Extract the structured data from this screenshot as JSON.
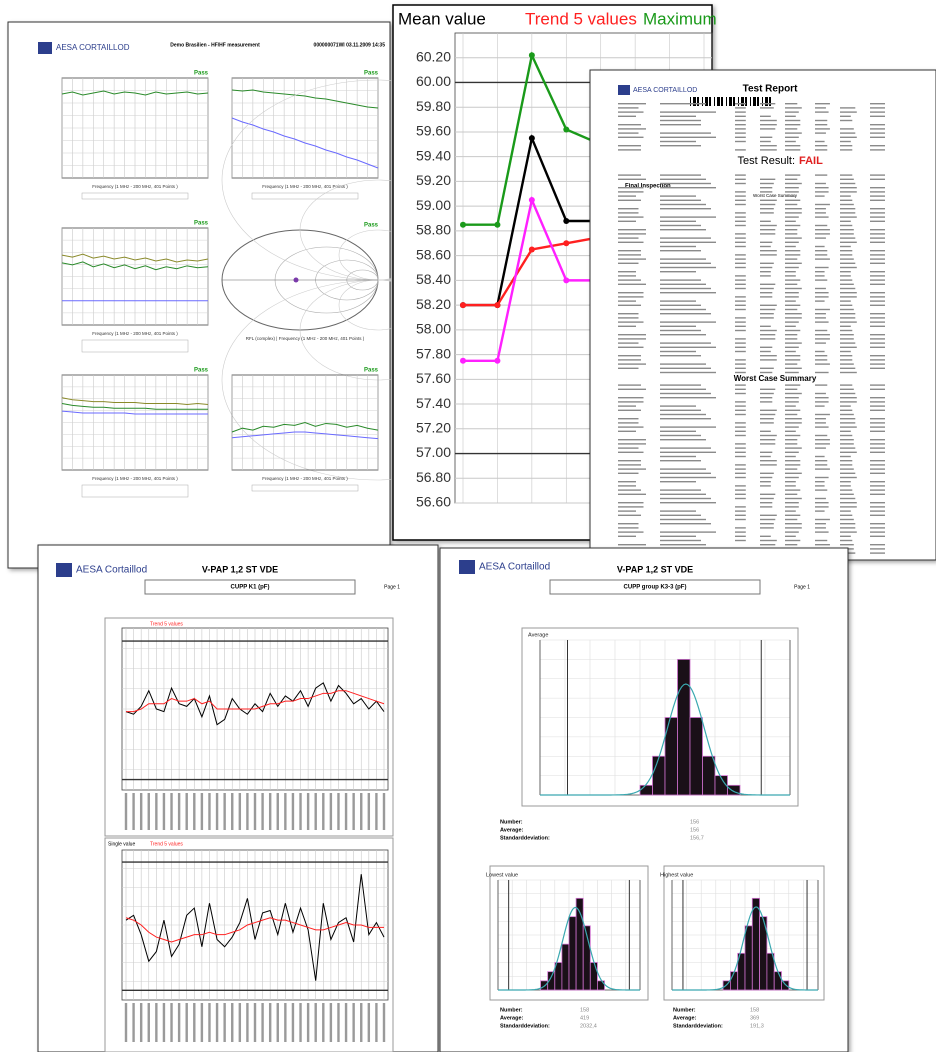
{
  "hf_report": {
    "logo": "AESA CORTAILLOD",
    "title": "Demo Brasilien - HF/HF measurement",
    "id": "000000071WI 03.11.2009 14:35"
  },
  "test_report": {
    "logo": "AESA CORTAILLOD",
    "title": "Test Report",
    "result_label": "Test Result:",
    "result": "FAIL",
    "section": "Final Inspection",
    "summary_small": "Worst Case Summary",
    "summary": "Worst Case Summary"
  },
  "trend_report": {
    "logo": "AESA Cortaillod",
    "title": "V-PAP 1,2 ST   VDE",
    "subtitle": "CUPP K1 (pF)",
    "page": "Page 1"
  },
  "histogram_report": {
    "logo": "AESA Cortaillod",
    "title": "V-PAP 1,2 ST   VDE",
    "subtitle": "CUPP group K3-3 (pF)",
    "page": "Page 1",
    "stats": [
      {
        "labels": [
          "Number:",
          "Average:",
          "Standarddeviation:"
        ],
        "values": [
          "156",
          "156",
          "156,7"
        ]
      },
      {
        "labels": [
          "Number:",
          "Average:",
          "Standarddeviation:"
        ],
        "values": [
          "158",
          "419",
          "2032,4"
        ]
      },
      {
        "labels": [
          "Number:",
          "Average:",
          "Standarddeviation:"
        ],
        "values": [
          "158",
          "369",
          "191,3"
        ]
      }
    ]
  },
  "chart_data": [
    {
      "type": "line",
      "categories": [
        null,
        null,
        null,
        null,
        null,
        null,
        null,
        null
      ],
      "series": [
        {
          "name": "Mean value",
          "color": "#000000",
          "values": [
            58.2,
            58.2,
            59.55,
            58.88,
            58.88,
            58.68,
            58.68,
            58.38
          ]
        },
        {
          "name": "Trend 5 values",
          "color": "#ff2020",
          "values": [
            58.2,
            58.2,
            58.65,
            58.7,
            58.75,
            58.85,
            58.92,
            58.7
          ]
        },
        {
          "name": "Maximum",
          "color": "#1a9a1a",
          "values": [
            58.85,
            58.85,
            60.22,
            59.62,
            59.5,
            59.27,
            59.38,
            59.1
          ]
        },
        {
          "color": "#ff20ff",
          "values": [
            57.75,
            57.75,
            59.05,
            58.4,
            58.4,
            58.17,
            58.17,
            57.8
          ]
        }
      ],
      "ylim": [
        56.6,
        60.4
      ],
      "yticks": [
        {
          "value": 56.6,
          "label": "56.60"
        },
        {
          "value": 56.8,
          "label": "56.80"
        },
        {
          "value": 57,
          "label": "57.00"
        },
        {
          "value": 57.2,
          "label": "57.20"
        },
        {
          "value": 57.4,
          "label": "57.40"
        },
        {
          "value": 57.6,
          "label": "57.60"
        },
        {
          "value": 57.8,
          "label": "57.80"
        },
        {
          "value": 58,
          "label": "58.00"
        },
        {
          "value": 58.2,
          "label": "58.20"
        },
        {
          "value": 58.4,
          "label": "58.40"
        },
        {
          "value": 58.6,
          "label": "58.60"
        },
        {
          "value": 58.8,
          "label": "58.80"
        },
        {
          "value": 59,
          "label": "59.00"
        },
        {
          "value": 59.2,
          "label": "59.20"
        },
        {
          "value": 59.4,
          "label": "59.40"
        },
        {
          "value": 59.6,
          "label": "59.60"
        },
        {
          "value": 59.8,
          "label": "59.80"
        },
        {
          "value": 60,
          "label": "60.00"
        },
        {
          "value": 60.2,
          "label": "60.20"
        }
      ],
      "limits": [
        60,
        57
      ],
      "grid": true
    },
    {
      "type": "line",
      "annotation": "Pass",
      "xlabel": "Frequency (1 MHz - 200 MHz, 401 Points )",
      "ylim": [
        0,
        100
      ],
      "series": [
        {
          "color": "#2a8a2a",
          "values": [
            84,
            86,
            83,
            85,
            87,
            84,
            86,
            85,
            83,
            86,
            84,
            85,
            86,
            84,
            85
          ]
        }
      ]
    },
    {
      "type": "line",
      "annotation": "Pass",
      "xlabel": "Frequency (1 MHz - 200 MHz, 401 Points )",
      "ylim": [
        0,
        100
      ],
      "series": [
        {
          "color": "#2a8a2a",
          "values": [
            88,
            87,
            88,
            86,
            85,
            84,
            83,
            82,
            80,
            79,
            77,
            75,
            73,
            71,
            70
          ]
        },
        {
          "color": "#6a6aff",
          "values": [
            60,
            56,
            53,
            49,
            46,
            42,
            39,
            35,
            32,
            28,
            25,
            21,
            18,
            14,
            10
          ]
        }
      ]
    },
    {
      "type": "line",
      "annotation": "Pass",
      "xlabel": "Frequency (1 MHz - 200 MHz, 401 Points )",
      "ylim": [
        0,
        100
      ],
      "series": [
        {
          "color": "#8a8a2a",
          "values": [
            72,
            70,
            73,
            69,
            71,
            68,
            70,
            67,
            69,
            66,
            68,
            65,
            67,
            66,
            68
          ]
        },
        {
          "color": "#2a8a2a",
          "values": [
            64,
            62,
            65,
            60,
            63,
            59,
            62,
            58,
            61,
            57,
            60,
            58,
            61,
            59,
            60
          ]
        },
        {
          "color": "#6a6aff",
          "values": [
            25,
            25,
            25,
            25,
            25,
            25,
            25,
            25,
            25,
            25,
            25,
            25,
            25,
            25,
            25
          ]
        }
      ]
    },
    {
      "type": "smith",
      "annotation": "Pass"
    },
    {
      "type": "line",
      "annotation": "Pass",
      "xlabel": "Frequency (1 MHz - 200 MHz, 401 Points )",
      "ylim": [
        0,
        100
      ],
      "series": [
        {
          "color": "#8a8a2a",
          "values": [
            76,
            74,
            73,
            72,
            72,
            71,
            71,
            71,
            70,
            70,
            70,
            70,
            69,
            70,
            69
          ]
        },
        {
          "color": "#2a8a2a",
          "values": [
            70,
            68,
            67,
            66,
            66,
            65,
            65,
            65,
            65,
            64,
            64,
            64,
            64,
            64,
            64
          ]
        },
        {
          "color": "#6a6aff",
          "values": [
            62,
            61,
            60,
            60,
            60,
            60,
            60,
            59,
            59,
            59,
            59,
            59,
            59,
            59,
            59
          ]
        }
      ]
    },
    {
      "type": "line",
      "annotation": "Pass",
      "title": "RFL (complex) | Frequency (1 MHz - 200 MHz, 401 Points )",
      "xlabel": "Frequency (1 MHz - 200 MHz, 401 Points )",
      "ylim": [
        0,
        100
      ],
      "series": [
        {
          "color": "#2a8a2a",
          "values": [
            40,
            44,
            42,
            46,
            45,
            48,
            47,
            50,
            46,
            49,
            48,
            45,
            47,
            44,
            42
          ]
        },
        {
          "color": "#6a6aff",
          "values": [
            34,
            35,
            36,
            37,
            38,
            39,
            40,
            40,
            39,
            38,
            37,
            36,
            35,
            34,
            33
          ]
        }
      ]
    },
    {
      "type": "line",
      "ylim": [
        -30,
        32
      ],
      "limits": [
        27,
        -26
      ],
      "series": [
        {
          "color": "#000000",
          "values": [
            0,
            -1,
            2,
            8,
            1,
            0,
            9,
            3,
            2,
            5,
            -2,
            6,
            -5,
            -3,
            5,
            1,
            -1,
            3,
            0,
            7,
            2,
            6,
            4,
            8,
            2,
            9,
            11,
            4,
            10,
            7,
            3,
            5,
            1,
            4,
            0
          ]
        },
        {
          "name": "Trend 5 values",
          "color": "#ff2020",
          "values": [
            0,
            0,
            1,
            3,
            3,
            3,
            5,
            4,
            4,
            5,
            3,
            4,
            1,
            1,
            1,
            1,
            1,
            1,
            2,
            3,
            3,
            4,
            4,
            5,
            5,
            6,
            7,
            7,
            8,
            8,
            7,
            6,
            5,
            4,
            3
          ]
        }
      ]
    },
    {
      "type": "line",
      "ylim": [
        -30,
        32
      ],
      "limits": [
        27,
        -26
      ],
      "series": [
        {
          "name": "Single value",
          "color": "#000000",
          "values": [
            3,
            5,
            -3,
            -14,
            -10,
            3,
            -12,
            -7,
            5,
            8,
            -8,
            10,
            -5,
            -8,
            -4,
            2,
            12,
            -5,
            6,
            7,
            -3,
            10,
            -2,
            8,
            -1,
            -22,
            10,
            -5,
            2,
            4,
            -6,
            22,
            -3,
            2,
            -4
          ]
        },
        {
          "name": "Trend 5 values",
          "color": "#ff2020",
          "values": [
            4,
            3,
            1,
            -2,
            -4,
            -5,
            -6,
            -5,
            -4,
            -3,
            -3,
            -2,
            -3,
            -3,
            -2,
            -1,
            1,
            2,
            3,
            4,
            3,
            3,
            2,
            1,
            0,
            -1,
            -1,
            0,
            1,
            2,
            1,
            1,
            0,
            0,
            0
          ]
        }
      ]
    },
    {
      "type": "histogram",
      "title": "Average",
      "bins": [
        0,
        1,
        2,
        3,
        4,
        5,
        6,
        7,
        8,
        9,
        10,
        11,
        12,
        13,
        14,
        15,
        16,
        17,
        18,
        19,
        20
      ],
      "counts": [
        0,
        0,
        0,
        0,
        0,
        0,
        0,
        0,
        1,
        4,
        8,
        14,
        8,
        4,
        2,
        1,
        0,
        0,
        0,
        0
      ],
      "ylim": [
        0,
        16
      ],
      "spec_limits": [
        2.2,
        17.7
      ]
    },
    {
      "type": "histogram",
      "title": "Lowest value",
      "bins": [
        0,
        1,
        2,
        3,
        4,
        5,
        6,
        7,
        8,
        9,
        10,
        11,
        12,
        13,
        14,
        15,
        16,
        17,
        18,
        19,
        20
      ],
      "counts": [
        0,
        0,
        0,
        0,
        0,
        0,
        1,
        2,
        3,
        5,
        8,
        10,
        7,
        3,
        1,
        0,
        0,
        0,
        0,
        0
      ],
      "ylim": [
        0,
        12
      ],
      "spec_limits": [
        1.5,
        18.5
      ]
    },
    {
      "type": "histogram",
      "title": "Highest value",
      "bins": [
        0,
        1,
        2,
        3,
        4,
        5,
        6,
        7,
        8,
        9,
        10,
        11,
        12,
        13,
        14,
        15,
        16,
        17,
        18,
        19,
        20
      ],
      "counts": [
        0,
        0,
        0,
        0,
        0,
        0,
        0,
        1,
        2,
        4,
        7,
        10,
        8,
        4,
        2,
        1,
        0,
        0,
        0,
        0
      ],
      "ylim": [
        0,
        12
      ],
      "spec_limits": [
        1.5,
        18.5
      ]
    }
  ]
}
